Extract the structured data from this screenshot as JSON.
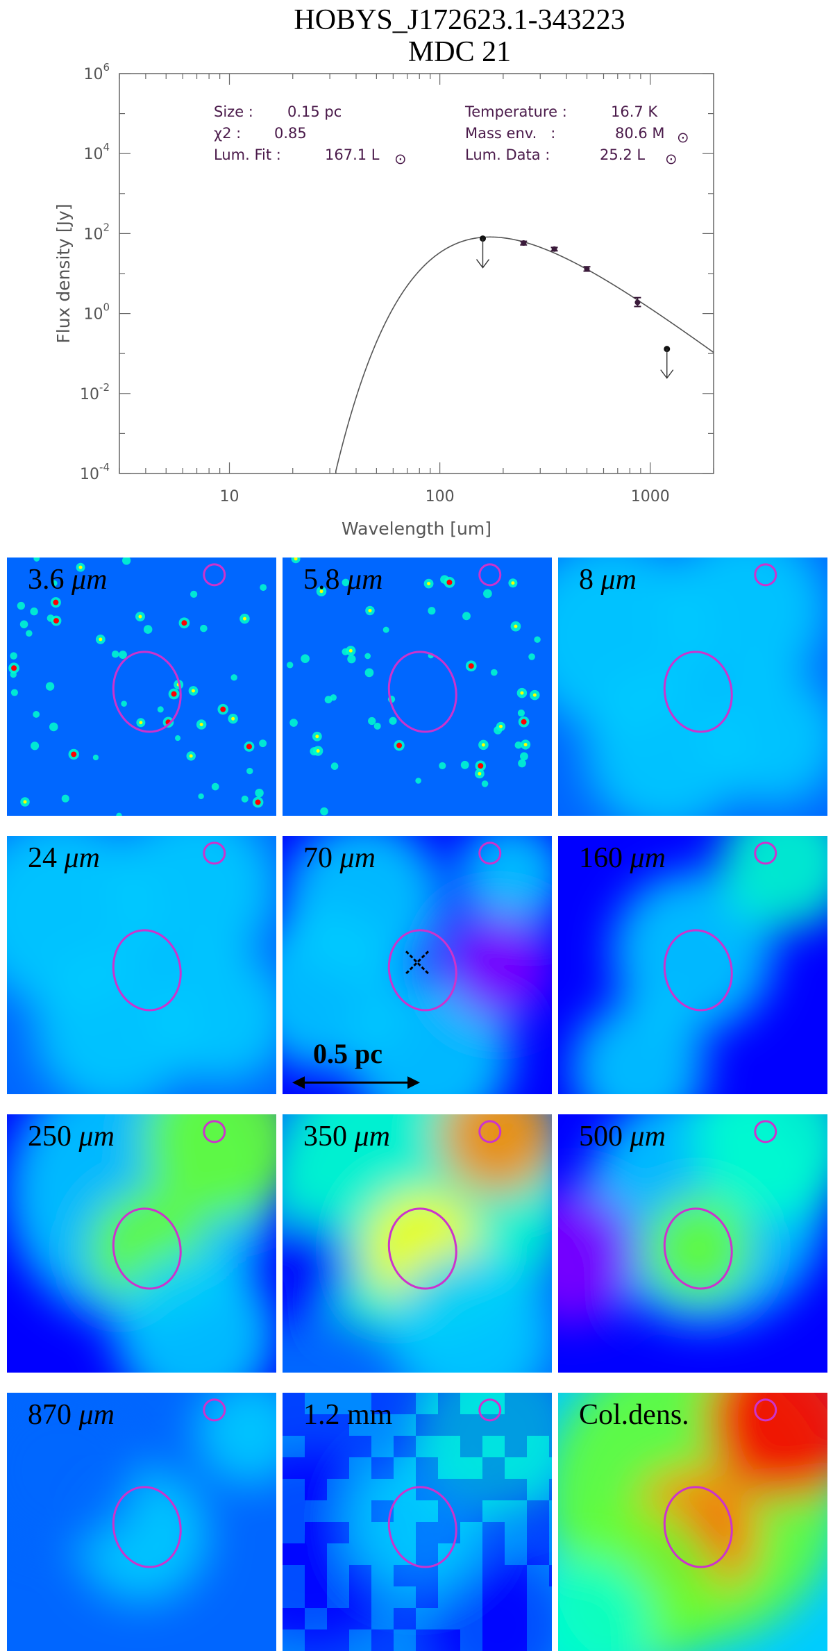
{
  "chart_data": {
    "type": "scatter",
    "title": "HOBYS_J172623.1-343223",
    "subtitle": "MDC 21",
    "xlabel": "Wavelength [um]",
    "ylabel": "Flux density [Jy]",
    "xscale": "log",
    "yscale": "log",
    "xlim": [
      3,
      2000
    ],
    "ylim": [
      0.0001,
      1000000
    ],
    "x_ticks": [
      "10",
      "100",
      "1000"
    ],
    "y_ticks": [
      {
        "base": "10",
        "exp": "-4",
        "value": 0.0001
      },
      {
        "base": "10",
        "exp": "-2",
        "value": 0.01
      },
      {
        "base": "10",
        "exp": "0",
        "value": 1
      },
      {
        "base": "10",
        "exp": "2",
        "value": 100
      },
      {
        "base": "10",
        "exp": "4",
        "value": 10000
      },
      {
        "base": "10",
        "exp": "6",
        "value": 1000000
      }
    ],
    "info": {
      "size_label": "Size :",
      "size_value": "0.15 pc",
      "chi2_label": "χ2 :",
      "chi2_value": "0.85",
      "lumfit_label": "Lum. Fit :",
      "lumfit_value": "167.1 L",
      "temp_label": "Temperature :",
      "temp_value": "16.7 K",
      "mass_label": "Mass env.   :",
      "mass_value": "80.6 M",
      "lumdata_label": "Lum. Data :",
      "lumdata_value": "25.2 L"
    },
    "points": [
      {
        "x": 160,
        "y": 75,
        "upper_limit": true
      },
      {
        "x": 250,
        "y": 58,
        "err": [
          52,
          64
        ]
      },
      {
        "x": 350,
        "y": 41,
        "err": [
          37,
          45
        ]
      },
      {
        "x": 500,
        "y": 13,
        "err": [
          11.5,
          14.8
        ]
      },
      {
        "x": 870,
        "y": 1.9,
        "err": [
          1.5,
          2.5
        ]
      },
      {
        "x": 1200,
        "y": 0.13,
        "upper_limit": true
      }
    ],
    "fit": {
      "model": "modified-blackbody",
      "temperature_K": 16.7,
      "peak_x": 175,
      "peak_y": 82
    }
  },
  "panels": [
    {
      "label": "3.6",
      "unit": "μm",
      "kind": "stars",
      "seed": 3
    },
    {
      "label": "5.8",
      "unit": "μm",
      "kind": "stars",
      "seed": 5
    },
    {
      "label": "8",
      "unit": "μm",
      "kind": "faint",
      "seed": 8
    },
    {
      "label": "24",
      "unit": "μm",
      "kind": "faint",
      "seed": 24
    },
    {
      "label": "70",
      "unit": "μm",
      "kind": "p70",
      "seed": 70
    },
    {
      "label": "160",
      "unit": "μm",
      "kind": "p160",
      "seed": 160
    },
    {
      "label": "250",
      "unit": "μm",
      "kind": "p250",
      "seed": 250
    },
    {
      "label": "350",
      "unit": "μm",
      "kind": "p350",
      "seed": 350
    },
    {
      "label": "500",
      "unit": "μm",
      "kind": "p500",
      "seed": 500
    },
    {
      "label": "870",
      "unit": "μm",
      "kind": "p870",
      "seed": 870
    },
    {
      "label": "1.2",
      "unit": "mm",
      "kind": "p12",
      "seed": 12
    },
    {
      "label": "Col.dens.",
      "unit": "",
      "kind": "col",
      "seed": 99
    }
  ],
  "scale_bar": {
    "label": "0.5 pc"
  },
  "colors": {
    "ellipse": "#cc33cc",
    "cmap": [
      "#7f00ff",
      "#0000ff",
      "#0066ff",
      "#00ccff",
      "#00ffcc",
      "#66ff33",
      "#ffff00",
      "#ff8800",
      "#ff0000"
    ]
  }
}
